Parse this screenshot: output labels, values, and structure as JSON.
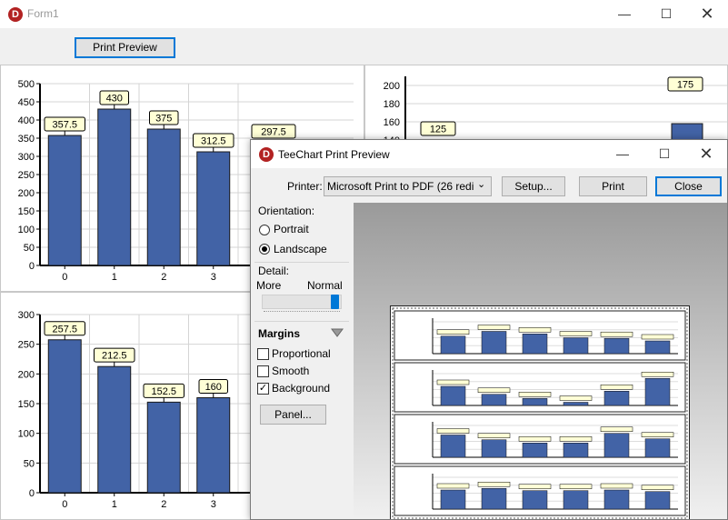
{
  "form": {
    "title": "Form1",
    "print_preview_button": "Print Preview"
  },
  "charts": {
    "top_left": {
      "categories": [
        "0",
        "1",
        "2",
        "3"
      ],
      "values": [
        357.5,
        430,
        375,
        312.5
      ],
      "extra_mark": "297.5",
      "y_ticks": [
        "500",
        "450",
        "400",
        "350",
        "300",
        "250",
        "200",
        "150",
        "100",
        "50",
        "0"
      ]
    },
    "top_right": {
      "y_ticks": [
        "200",
        "180",
        "160",
        "140"
      ],
      "marks": [
        "125",
        "175"
      ]
    },
    "bottom_left": {
      "categories": [
        "0",
        "1",
        "2",
        "3"
      ],
      "values": [
        257.5,
        212.5,
        152.5,
        160
      ],
      "y_ticks": [
        "300",
        "250",
        "200",
        "150",
        "100",
        "50",
        "0"
      ]
    }
  },
  "chart_data": [
    {
      "type": "bar",
      "categories": [
        "0",
        "1",
        "2",
        "3"
      ],
      "values": [
        357.5,
        430,
        375,
        312.5
      ],
      "ylim": [
        0,
        500
      ],
      "grid": true
    },
    {
      "type": "bar",
      "categories": [
        "0",
        "1",
        "2",
        "3"
      ],
      "values": [
        257.5,
        212.5,
        152.5,
        160
      ],
      "ylim": [
        0,
        300
      ],
      "grid": true
    }
  ],
  "dialog": {
    "title": "TeeChart Print Preview",
    "printer_label": "Printer:",
    "printer_value": "Microsoft Print to PDF (26 redi",
    "setup_button": "Setup...",
    "print_button": "Print",
    "close_button": "Close",
    "orientation_label": "Orientation:",
    "portrait_label": "Portrait",
    "landscape_label": "Landscape",
    "orientation_selected": "Landscape",
    "detail_label": "Detail:",
    "detail_more": "More",
    "detail_normal": "Normal",
    "margins_label": "Margins",
    "proportional_label": "Proportional",
    "proportional_checked": false,
    "smooth_label": "Smooth",
    "smooth_checked": false,
    "background_label": "Background",
    "background_checked": true,
    "panel_button": "Panel..."
  },
  "colors": {
    "bar_fill": "#4263a6",
    "bar_stroke": "#1a1a1a",
    "mark_fill": "#ffffd6",
    "accent": "#0078d7",
    "app_icon": "#b22222"
  }
}
